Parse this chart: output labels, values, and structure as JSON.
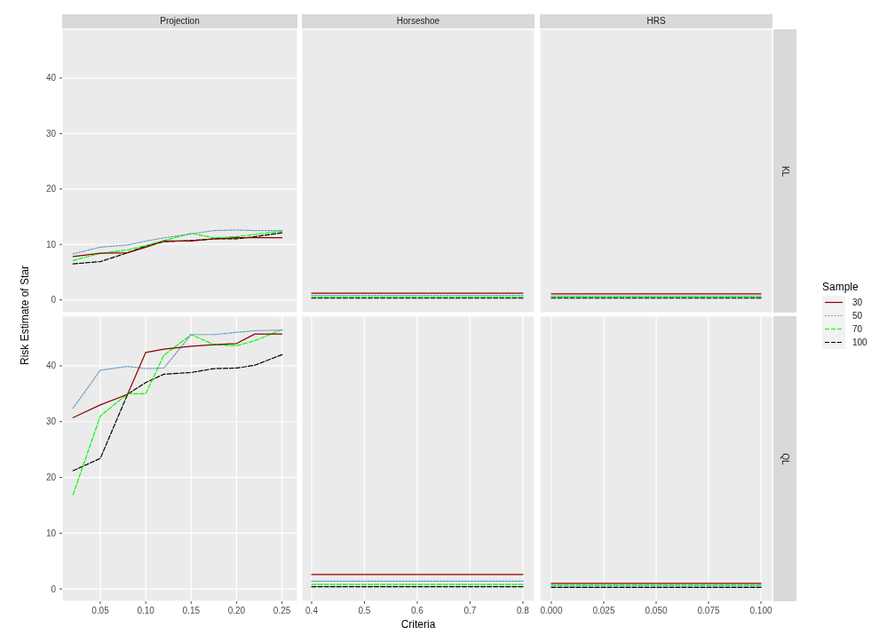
{
  "chart_data": [
    {
      "type": "line",
      "title": "Projection",
      "ylabel": "Risk Estimate of Star",
      "x": [
        0.02,
        0.05,
        0.08,
        0.1,
        0.12,
        0.15,
        0.175,
        0.2,
        0.22,
        0.25
      ],
      "xlim": [
        0.008,
        0.267
      ],
      "xticks": [
        0.05,
        0.1,
        0.15,
        0.2,
        0.25
      ],
      "ylim": [
        -2.3,
        48.8
      ],
      "yticks": [
        0,
        10,
        20,
        30,
        40
      ],
      "grid": true,
      "tick_labels": "y",
      "series": [
        {
          "color": "#8b0000",
          "line_style": "solid",
          "values": [
            7.8,
            8.4,
            8.5,
            9.5,
            10.6,
            10.6,
            11.0,
            11.2,
            11.2,
            11.2
          ]
        },
        {
          "color": "#6a9bc3",
          "line_style": "dotted",
          "values": [
            8.3,
            9.5,
            9.9,
            10.6,
            11.2,
            11.9,
            12.5,
            12.6,
            12.5,
            12.5
          ]
        },
        {
          "color": "#00ff00",
          "line_style": "dashed",
          "values": [
            7.1,
            8.4,
            9.0,
            9.8,
            10.7,
            12.0,
            11.2,
            11.4,
            11.8,
            12.4
          ]
        },
        {
          "color": "#000000",
          "line_style": "dashed",
          "values": [
            6.5,
            6.9,
            8.5,
            9.7,
            10.5,
            10.7,
            11.0,
            11.0,
            11.4,
            12.1
          ]
        }
      ]
    },
    {
      "type": "line",
      "title": "Horseshoe",
      "x": [
        0.4,
        0.8
      ],
      "xlim": [
        0.3815,
        0.822
      ],
      "xticks": [
        0.4,
        0.5,
        0.6,
        0.7,
        0.8
      ],
      "ylim": [
        -2.3,
        48.8
      ],
      "yticks": [
        0,
        10,
        20,
        30,
        40
      ],
      "grid": true,
      "tick_labels": false,
      "series": [
        {
          "color": "#8b0000",
          "line_style": "solid",
          "values": [
            1.2,
            1.2
          ]
        },
        {
          "color": "#6a9bc3",
          "line_style": "dotted",
          "values": [
            0.8,
            0.8
          ]
        },
        {
          "color": "#00ff00",
          "line_style": "dashed",
          "values": [
            0.5,
            0.5
          ]
        },
        {
          "color": "#000000",
          "line_style": "dashed",
          "values": [
            0.3,
            0.3
          ]
        }
      ]
    },
    {
      "type": "line",
      "title": "HRS",
      "annotations": [
        "KL"
      ],
      "legend": "right",
      "legend_title": "Sample",
      "x": [
        0,
        0.1
      ],
      "xlim": [
        -0.0055,
        0.1055
      ],
      "xticks": [
        0,
        0.025,
        0.05,
        0.075,
        0.1
      ],
      "ylim": [
        -2.3,
        48.8
      ],
      "yticks": [
        0,
        10,
        20,
        30,
        40
      ],
      "grid": true,
      "tick_labels": false,
      "series": [
        {
          "name": "30",
          "color": "#8b0000",
          "line_style": "solid",
          "values": [
            1.1,
            1.1
          ]
        },
        {
          "name": "50",
          "color": "#6a9bc3",
          "line_style": "dotted",
          "values": [
            0.7,
            0.7
          ]
        },
        {
          "name": "70",
          "color": "#00ff00",
          "line_style": "dashed",
          "values": [
            0.5,
            0.5
          ]
        },
        {
          "name": "100",
          "color": "#000000",
          "line_style": "dashed",
          "values": [
            0.3,
            0.3
          ]
        }
      ]
    },
    {
      "type": "line",
      "x": [
        0.02,
        0.05,
        0.08,
        0.1,
        0.12,
        0.15,
        0.175,
        0.2,
        0.22,
        0.25
      ],
      "xlim": [
        0.008,
        0.267
      ],
      "xticks": [
        0.05,
        {
          "value": 0.1,
          "label": "0.10"
        },
        0.15,
        {
          "value": 0.2,
          "label": "0.20"
        },
        0.25
      ],
      "ylim": [
        -2.2,
        48.9
      ],
      "yticks": [
        0,
        10,
        20,
        30,
        40
      ],
      "grid": true,
      "series": [
        {
          "color": "#8b0000",
          "line_style": "solid",
          "values": [
            30.7,
            33.0,
            34.9,
            42.4,
            43.0,
            43.5,
            43.8,
            44.0,
            45.7,
            45.7
          ]
        },
        {
          "color": "#6a9bc3",
          "line_style": "dotted",
          "values": [
            32.4,
            39.2,
            39.9,
            39.5,
            39.6,
            45.6,
            45.6,
            46.0,
            46.3,
            46.4
          ]
        },
        {
          "color": "#00ff00",
          "line_style": "dashed",
          "values": [
            16.9,
            31.0,
            35.0,
            35.0,
            41.9,
            45.6,
            43.8,
            43.6,
            44.5,
            46.5
          ]
        },
        {
          "color": "#000000",
          "line_style": "dashed",
          "values": [
            21.2,
            23.4,
            34.9,
            37.0,
            38.5,
            38.8,
            39.5,
            39.6,
            40.1,
            42.0
          ]
        }
      ]
    },
    {
      "type": "line",
      "xlabel": "Criteria",
      "x": [
        0.4,
        0.8
      ],
      "xlim": [
        0.3815,
        0.822
      ],
      "xticks": [
        0.4,
        0.5,
        0.6,
        0.7,
        0.8
      ],
      "ylim": [
        -2.2,
        48.9
      ],
      "yticks": [
        0,
        10,
        20,
        30,
        40
      ],
      "grid": true,
      "tick_labels": "x",
      "series": [
        {
          "color": "#8b0000",
          "line_style": "solid",
          "values": [
            2.6,
            2.6
          ]
        },
        {
          "color": "#6a9bc3",
          "line_style": "dotted",
          "values": [
            1.4,
            1.4
          ]
        },
        {
          "color": "#00ff00",
          "line_style": "dashed",
          "values": [
            0.8,
            0.8
          ]
        },
        {
          "color": "#000000",
          "line_style": "dashed",
          "values": [
            0.4,
            0.4
          ]
        }
      ]
    },
    {
      "type": "line",
      "annotations": [
        "QL"
      ],
      "x": [
        0,
        0.1
      ],
      "xlim": [
        -0.0055,
        0.1055
      ],
      "xticks": [
        {
          "value": 0,
          "label": "0.000"
        },
        {
          "value": 0.025,
          "label": "0.025"
        },
        {
          "value": 0.05,
          "label": "0.050"
        },
        {
          "value": 0.075,
          "label": "0.075"
        },
        {
          "value": 0.1,
          "label": "0.100"
        }
      ],
      "ylim": [
        -2.2,
        48.9
      ],
      "yticks": [
        0,
        10,
        20,
        30,
        40
      ],
      "grid": true,
      "tick_labels": "x",
      "series": [
        {
          "color": "#8b0000",
          "line_style": "solid",
          "values": [
            1.0,
            1.0
          ]
        },
        {
          "color": "#6a9bc3",
          "line_style": "dotted",
          "values": [
            0.5,
            0.5
          ]
        },
        {
          "color": "#00ff00",
          "line_style": "dashed",
          "values": [
            0.7,
            0.7
          ]
        },
        {
          "color": "#000000",
          "line_style": "dashed",
          "values": [
            0.3,
            0.3
          ]
        }
      ]
    }
  ]
}
